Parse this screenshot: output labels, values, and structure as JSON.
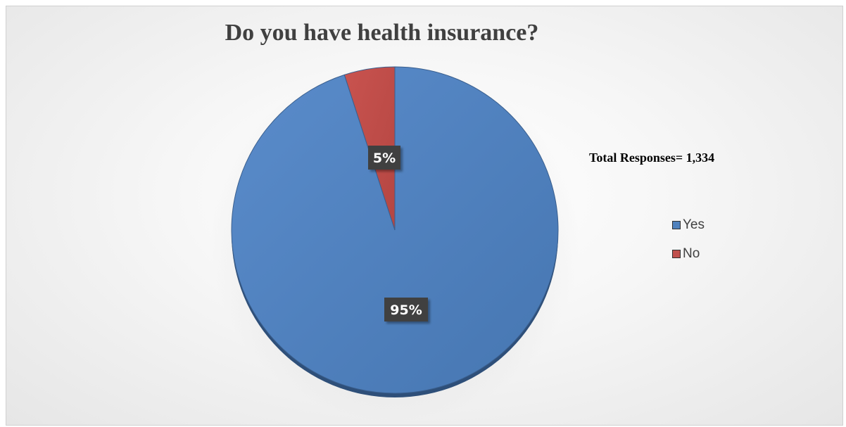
{
  "chart_data": {
    "type": "pie",
    "title": "Do you have health insurance?",
    "annotation": "Total Responses= 1,334",
    "categories": [
      "Yes",
      "No"
    ],
    "values": [
      95,
      5
    ],
    "data_labels": [
      "95%",
      "5%"
    ],
    "colors": [
      "#4f81bd",
      "#c0504d"
    ],
    "legend_position": "right"
  }
}
